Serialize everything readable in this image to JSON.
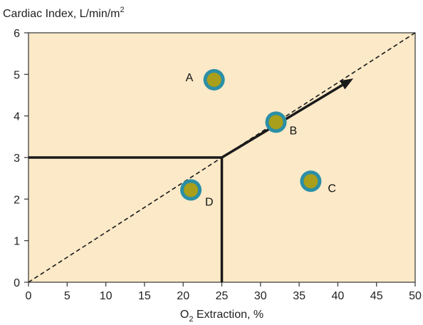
{
  "chart_data": {
    "type": "scatter",
    "ylabel": {
      "prefix": "Cardiac Index, L/min/m",
      "sup": "2"
    },
    "xlabel": {
      "prefix": "O",
      "sub": "2",
      "suffix": " Extraction, %"
    },
    "xlim": [
      0,
      50
    ],
    "ylim": [
      0,
      6
    ],
    "xticks": [
      0,
      5,
      10,
      15,
      20,
      25,
      30,
      35,
      40,
      45,
      50
    ],
    "yticks": [
      0,
      1,
      2,
      3,
      4,
      5,
      6
    ],
    "grid": false,
    "points": [
      {
        "label": "A",
        "x": 24,
        "y": 4.87
      },
      {
        "label": "B",
        "x": 32,
        "y": 3.85
      },
      {
        "label": "C",
        "x": 36.5,
        "y": 2.43
      },
      {
        "label": "D",
        "x": 21,
        "y": 2.22
      }
    ],
    "reference_lines": {
      "dashed_diagonal": [
        [
          0,
          0
        ],
        [
          50,
          6
        ]
      ],
      "solid_horizontal": [
        [
          0,
          3
        ],
        [
          25,
          3
        ]
      ],
      "solid_vertical": [
        [
          25,
          0
        ],
        [
          25,
          3
        ]
      ],
      "arrow": [
        [
          25,
          3
        ],
        [
          42,
          4.9
        ]
      ]
    },
    "colors": {
      "background": "#fbe9c8",
      "marker_fill": "#a99f1a",
      "marker_ring": "#2b8fa6",
      "lines": "#1a1a1a"
    }
  }
}
